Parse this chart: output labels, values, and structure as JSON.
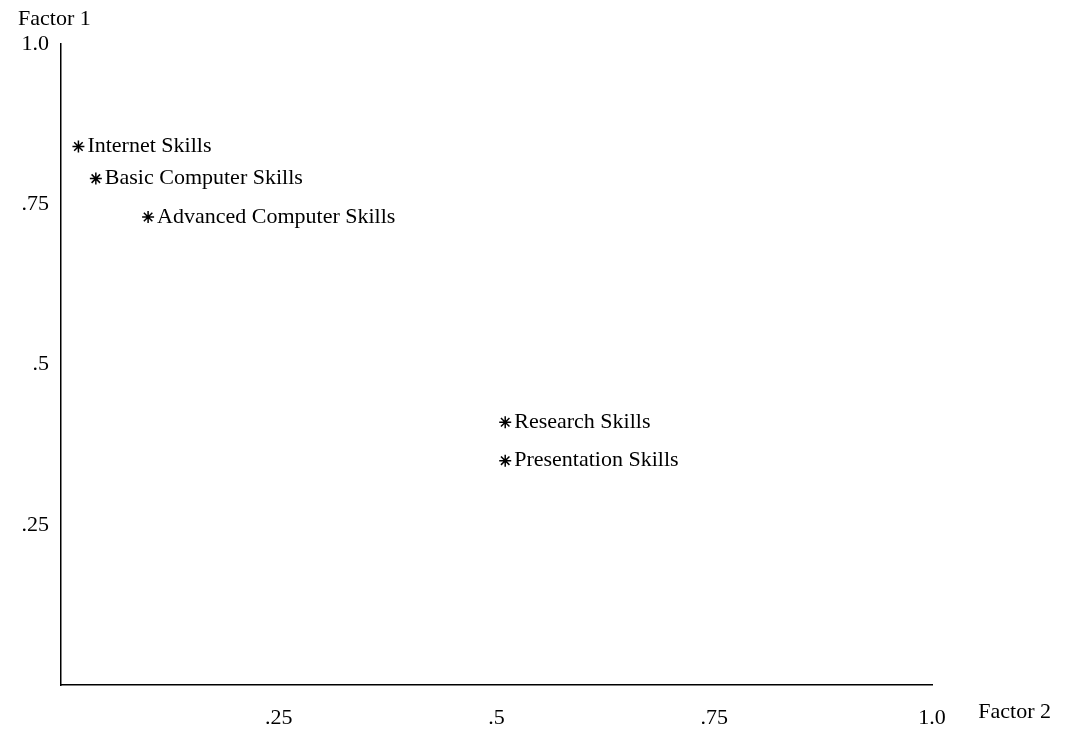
{
  "chart_data": {
    "type": "scatter",
    "xlabel": "Factor 2",
    "ylabel": "Factor 1",
    "x": [
      0.02,
      0.04,
      0.1,
      0.51,
      0.51
    ],
    "values": [
      0.84,
      0.79,
      0.73,
      0.41,
      0.35
    ],
    "color": "#000000",
    "marker": "cross",
    "xlim": [
      0,
      1
    ],
    "ylim": [
      0,
      1
    ],
    "xticks": [
      {
        "value": 0.25,
        "label": ".25"
      },
      {
        "value": 0.5,
        "label": ".5"
      },
      {
        "value": 0.75,
        "label": ".75"
      },
      {
        "value": 1,
        "label": "1.0"
      }
    ],
    "yticks": [
      {
        "value": 0.25,
        "label": ".25"
      },
      {
        "value": 0.5,
        "label": ".5"
      },
      {
        "value": 0.75,
        "label": ".75"
      },
      {
        "value": 1,
        "label": "1.0"
      }
    ],
    "annotations": [
      {
        "text": "Internet Skills",
        "x": 0.02,
        "y": 0.84
      },
      {
        "text": "Basic Computer Skills",
        "x": 0.04,
        "y": 0.79
      },
      {
        "text": "Advanced Computer Skills",
        "x": 0.1,
        "y": 0.73
      },
      {
        "text": "Research Skills",
        "x": 0.51,
        "y": 0.41
      },
      {
        "text": "Presentation Skills",
        "x": 0.51,
        "y": 0.35
      }
    ]
  }
}
